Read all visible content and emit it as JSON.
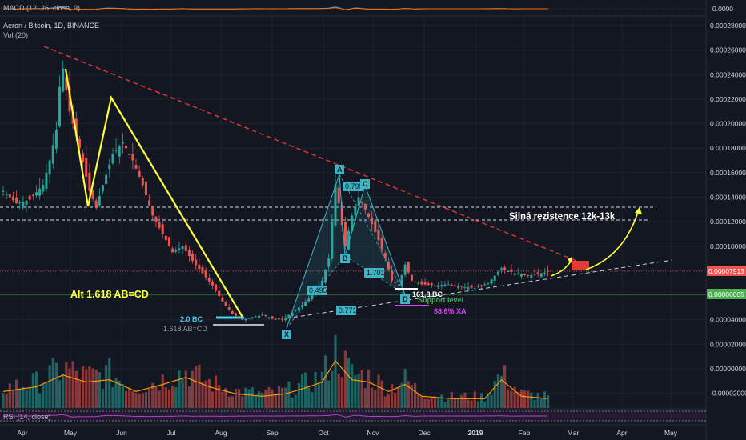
{
  "header": {
    "macd_label": "MACD (12, 26, close, 9)",
    "symbol_label": "Aeron / Bitcoin, 1D, BINANCE",
    "vol_label": "Vol (20)",
    "rsi_label": "RSI (14, close)"
  },
  "chart_data": {
    "type": "candlestick",
    "title": "Aeron / Bitcoin, 1D, BINANCE",
    "price_axis": {
      "ticks": [
        "0.00028000",
        "0.00026000",
        "0.00024000",
        "0.00022000",
        "0.00020000",
        "0.00018000",
        "0.00016000",
        "0.00014000",
        "0.00012000",
        "0.00010000",
        "0.00008000",
        "0.00006000",
        "0.00004000",
        "0.00002000",
        "0.00000000",
        "-0.00002000"
      ],
      "current_price": "0.00007913",
      "support_price": "0.00006005",
      "macd_zero": "0.0000",
      "ylim": [
        -3e-05,
        0.00029
      ]
    },
    "time_axis": [
      "Apr",
      "May",
      "Jun",
      "Jul",
      "Aug",
      "Sep",
      "Oct",
      "Nov",
      "Dec",
      "2019",
      "Feb",
      "Mar",
      "Apr",
      "May"
    ],
    "close_path": [
      [
        0,
        0.000145
      ],
      [
        4,
        0.000135
      ],
      [
        8,
        0.000138
      ],
      [
        12,
        0.00015
      ],
      [
        14,
        0.00017
      ],
      [
        16,
        0.000195
      ],
      [
        17,
        0.00023
      ],
      [
        18,
        0.000245
      ],
      [
        20,
        0.00021
      ],
      [
        23,
        0.00018
      ],
      [
        26,
        0.000145
      ],
      [
        28,
        0.000132
      ],
      [
        30,
        0.00015
      ],
      [
        33,
        0.000175
      ],
      [
        36,
        0.000185
      ],
      [
        39,
        0.00017
      ],
      [
        42,
        0.00015
      ],
      [
        45,
        0.000125
      ],
      [
        48,
        0.00011
      ],
      [
        51,
        9.5e-05
      ],
      [
        54,
        0.0001
      ],
      [
        57,
        8.8e-05
      ],
      [
        60,
        7.8e-05
      ],
      [
        63,
        6.8e-05
      ],
      [
        66,
        5.5e-05
      ],
      [
        69,
        4.5e-05
      ],
      [
        72,
        4e-05
      ],
      [
        75,
        4.2e-05
      ],
      [
        78,
        4.4e-05
      ],
      [
        81,
        4.1e-05
      ],
      [
        84,
        4e-05
      ],
      [
        87,
        4.6e-05
      ],
      [
        90,
        5.2e-05
      ],
      [
        93,
        6e-05
      ],
      [
        96,
        7.2e-05
      ],
      [
        98,
        9e-05
      ],
      [
        100,
        0.00015
      ],
      [
        101,
        0.000135
      ],
      [
        103,
        0.0001
      ],
      [
        105,
        0.000125
      ],
      [
        107,
        0.00014
      ],
      [
        109,
        0.00013
      ],
      [
        111,
        0.000118
      ],
      [
        113,
        0.000105
      ],
      [
        115,
        9e-05
      ],
      [
        117,
        7.2e-05
      ],
      [
        119,
        6.8e-05
      ],
      [
        121,
        8.5e-05
      ],
      [
        123,
        7.2e-05
      ],
      [
        126,
        6.9e-05
      ],
      [
        130,
        6.8e-05
      ],
      [
        134,
        6.9e-05
      ],
      [
        138,
        6.7e-05
      ],
      [
        142,
        6.6e-05
      ],
      [
        146,
        7e-05
      ],
      [
        150,
        8.2e-05
      ],
      [
        154,
        7.8e-05
      ],
      [
        158,
        7.6e-05
      ],
      [
        162,
        7.8e-05
      ],
      [
        164,
        7.9e-05
      ]
    ],
    "volume_profile": [
      [
        0,
        0.35
      ],
      [
        10,
        0.45
      ],
      [
        18,
        0.7
      ],
      [
        25,
        0.55
      ],
      [
        32,
        0.6
      ],
      [
        40,
        0.35
      ],
      [
        48,
        0.5
      ],
      [
        55,
        0.65
      ],
      [
        62,
        0.45
      ],
      [
        70,
        0.3
      ],
      [
        78,
        0.25
      ],
      [
        85,
        0.3
      ],
      [
        92,
        0.45
      ],
      [
        96,
        0.55
      ],
      [
        100,
        1.0
      ],
      [
        105,
        0.6
      ],
      [
        110,
        0.55
      ],
      [
        116,
        0.35
      ],
      [
        121,
        0.5
      ],
      [
        126,
        0.25
      ],
      [
        135,
        0.2
      ],
      [
        145,
        0.2
      ],
      [
        150,
        0.6
      ],
      [
        156,
        0.25
      ],
      [
        164,
        0.2
      ]
    ],
    "annotations": {
      "resistance_label": "Silná rezistence 12k-13k",
      "abcd_label": "Alt 1.618 AB=CD",
      "bc_20": "2.0 BC",
      "abcd_1618": "1.618 AB=CD",
      "bc_1618": "161.8 BC",
      "support_label": "Support level",
      "xa_886": "88.6% XA",
      "ratio_0495": "0.495",
      "ratio_0771": "0.771",
      "ratio_0795": "0.795",
      "ratio_1701": "1.701",
      "point_x": "X",
      "point_a": "A",
      "point_b": "B",
      "point_c": "C",
      "point_d": "D"
    },
    "colors": {
      "background": "#131722",
      "up": "#26a69a",
      "down": "#ef5350",
      "pattern_yellow": "#ffff3b",
      "harmonic_teal": "#3fb4c5",
      "trendline_red": "#e53935",
      "support_green": "#4caf50",
      "rsi_purple": "#9c27b0",
      "volume_ma": "#ff9800"
    }
  }
}
